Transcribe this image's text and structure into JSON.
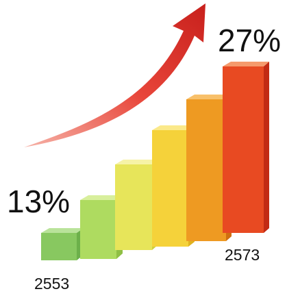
{
  "labels": {
    "start_percent": "13%",
    "end_percent": "27%",
    "start_value": "2553",
    "end_value": "2573"
  }
}
